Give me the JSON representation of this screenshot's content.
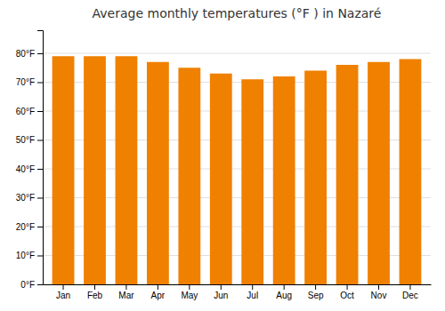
{
  "chart_data": {
    "type": "bar",
    "title": "Average monthly temperatures (°F ) in Nazaré",
    "categories": [
      "Jan",
      "Feb",
      "Mar",
      "Apr",
      "May",
      "Jun",
      "Jul",
      "Aug",
      "Sep",
      "Oct",
      "Nov",
      "Dec"
    ],
    "values": [
      79,
      79,
      79,
      77,
      75,
      73,
      71,
      72,
      74,
      76,
      77,
      78
    ],
    "color": "#F08000",
    "ylim": [
      0,
      88
    ],
    "yticks": [
      {
        "value": 0,
        "label": "0°F"
      },
      {
        "value": 10,
        "label": "10°F"
      },
      {
        "value": 20,
        "label": "20°F"
      },
      {
        "value": 30,
        "label": "30°F"
      },
      {
        "value": 40,
        "label": "40°F"
      },
      {
        "value": 50,
        "label": "50°F"
      },
      {
        "value": 60,
        "label": "60°F"
      },
      {
        "value": 70,
        "label": "70°F"
      },
      {
        "value": 80,
        "label": "80°F"
      }
    ],
    "grid": true
  }
}
